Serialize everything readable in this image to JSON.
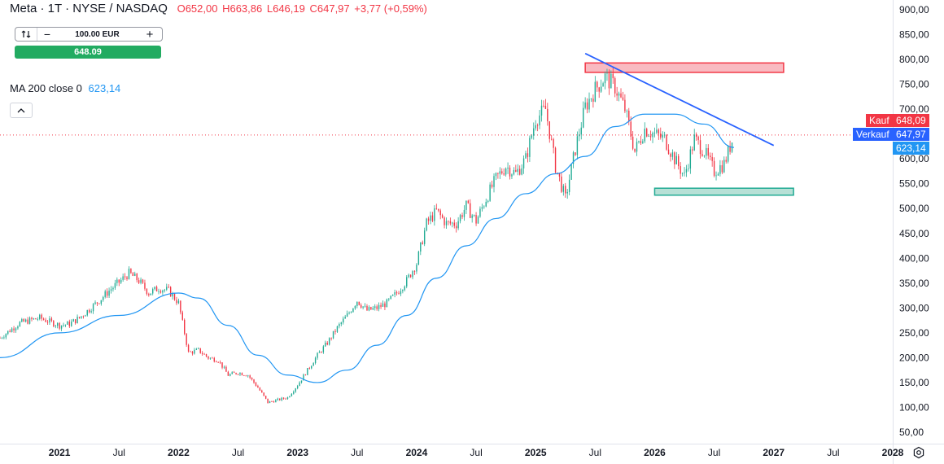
{
  "header": {
    "symbol": "Meta · 1T · NYSE / NASDAQ",
    "open": "O652,00",
    "high": "H663,86",
    "low": "L646,19",
    "close": "C647,97",
    "change": "+3,77 (+0,59%)"
  },
  "trade": {
    "quantity": "100.00 EUR",
    "minus": "−",
    "plus": "+",
    "buy_value": "648.09"
  },
  "indicator": {
    "label": "MA 200 close 0",
    "value": "623,14"
  },
  "price_tags": {
    "buy_label": "Kauf",
    "buy_value": "648,09",
    "sell_label": "Verkauf",
    "sell_value": "647,97",
    "ma_value": "623,14"
  },
  "colors": {
    "up": "#22ab94",
    "down": "#f23645",
    "ma": "#2196f3",
    "trendline": "#2962ff",
    "resistance_fill": "#f7a9b1",
    "resistance_border": "#f23645",
    "support_fill": "#a5d8cc",
    "support_border": "#22ab94",
    "buy_tag": "#f23645",
    "sell_tag": "#2962ff"
  },
  "chart_data": {
    "type": "line",
    "ylim": [
      50,
      910
    ],
    "x_start": "2020-07",
    "x_end": "2028-01",
    "y_ticks": [
      "900,00",
      "850,00",
      "800,00",
      "750,00",
      "700,00",
      "650,00",
      "600,00",
      "550,00",
      "500,00",
      "450,00",
      "400,00",
      "350,00",
      "300,00",
      "250,00",
      "200,00",
      "150,00",
      "100,00",
      "50,00"
    ],
    "x_ticks": [
      {
        "label": "2021",
        "date": "2021-01"
      },
      {
        "label": "Jul",
        "date": "2021-07"
      },
      {
        "label": "2022",
        "date": "2022-01"
      },
      {
        "label": "Jul",
        "date": "2022-07"
      },
      {
        "label": "2023",
        "date": "2023-01"
      },
      {
        "label": "Jul",
        "date": "2023-07"
      },
      {
        "label": "2024",
        "date": "2024-01"
      },
      {
        "label": "Jul",
        "date": "2024-07"
      },
      {
        "label": "2025",
        "date": "2025-01"
      },
      {
        "label": "Jul",
        "date": "2025-07"
      },
      {
        "label": "2026",
        "date": "2026-01"
      },
      {
        "label": "Jul",
        "date": "2026-07"
      },
      {
        "label": "2027",
        "date": "2027-01"
      },
      {
        "label": "Jul",
        "date": "2027-07"
      },
      {
        "label": "2028",
        "date": "2028-01"
      }
    ],
    "series": [
      {
        "points": [
          [
            "2020-07",
            240
          ],
          [
            "2020-09",
            270
          ],
          [
            "2020-11",
            280
          ],
          [
            "2021-01",
            265
          ],
          [
            "2021-02",
            268
          ],
          [
            "2021-03",
            280
          ],
          [
            "2021-05",
            315
          ],
          [
            "2021-06",
            335
          ],
          [
            "2021-07",
            352
          ],
          [
            "2021-08",
            370
          ],
          [
            "2021-09",
            355
          ],
          [
            "2021-10",
            330
          ],
          [
            "2021-11",
            340
          ],
          [
            "2021-12",
            335
          ],
          [
            "2022-01",
            310
          ],
          [
            "2022-02",
            210
          ],
          [
            "2022-03",
            215
          ],
          [
            "2022-04",
            200
          ],
          [
            "2022-05",
            195
          ],
          [
            "2022-06",
            165
          ],
          [
            "2022-07",
            170
          ],
          [
            "2022-08",
            165
          ],
          [
            "2022-09",
            140
          ],
          [
            "2022-10",
            110
          ],
          [
            "2022-11",
            115
          ],
          [
            "2022-12",
            120
          ],
          [
            "2023-01",
            145
          ],
          [
            "2023-02",
            175
          ],
          [
            "2023-03",
            205
          ],
          [
            "2023-04",
            230
          ],
          [
            "2023-05",
            260
          ],
          [
            "2023-06",
            285
          ],
          [
            "2023-07",
            315
          ],
          [
            "2023-08",
            295
          ],
          [
            "2023-09",
            300
          ],
          [
            "2023-10",
            310
          ],
          [
            "2023-11",
            330
          ],
          [
            "2023-12",
            355
          ],
          [
            "2024-01",
            390
          ],
          [
            "2024-02",
            470
          ],
          [
            "2024-03",
            495
          ],
          [
            "2024-04",
            470
          ],
          [
            "2024-05",
            470
          ],
          [
            "2024-06",
            505
          ],
          [
            "2024-07",
            475
          ],
          [
            "2024-08",
            520
          ],
          [
            "2024-09",
            560
          ],
          [
            "2024-10",
            585
          ],
          [
            "2024-11",
            570
          ],
          [
            "2024-12",
            600
          ],
          [
            "2025-01",
            680
          ],
          [
            "2025-02",
            700
          ],
          [
            "2025-03",
            585
          ],
          [
            "2025-04",
            520
          ],
          [
            "2025-05",
            620
          ],
          [
            "2025-06",
            705
          ],
          [
            "2025-07",
            740
          ],
          [
            "2025-08",
            765
          ],
          [
            "2025-09",
            745
          ],
          [
            "2025-10",
            700
          ],
          [
            "2025-11",
            615
          ],
          [
            "2025-12",
            660
          ],
          [
            "2026-01",
            650
          ],
          [
            "2026-02",
            640
          ],
          [
            "2026-03",
            600
          ],
          [
            "2026-04",
            565
          ],
          [
            "2026-05",
            640
          ],
          [
            "2026-06",
            615
          ],
          [
            "2026-07",
            575
          ],
          [
            "2026-08",
            590
          ],
          [
            "2026-09",
            648
          ]
        ]
      },
      {
        "name": "MA 200 close 0",
        "points": [
          [
            "2020-07",
            200
          ],
          [
            "2021-01",
            250
          ],
          [
            "2021-07",
            285
          ],
          [
            "2022-01",
            330
          ],
          [
            "2022-03",
            320
          ],
          [
            "2022-06",
            265
          ],
          [
            "2022-09",
            205
          ],
          [
            "2022-12",
            165
          ],
          [
            "2023-03",
            150
          ],
          [
            "2023-06",
            175
          ],
          [
            "2023-09",
            225
          ],
          [
            "2023-12",
            285
          ],
          [
            "2024-03",
            360
          ],
          [
            "2024-06",
            425
          ],
          [
            "2024-09",
            480
          ],
          [
            "2024-12",
            530
          ],
          [
            "2025-03",
            570
          ],
          [
            "2025-06",
            605
          ],
          [
            "2025-09",
            665
          ],
          [
            "2025-12",
            690
          ],
          [
            "2026-03",
            690
          ],
          [
            "2026-06",
            670
          ],
          [
            "2026-09",
            623
          ]
        ]
      }
    ],
    "annotations": {
      "resistance_zone": {
        "x0": "2025-06",
        "x1": "2027-02",
        "y0": 774,
        "y1": 793
      },
      "support_zone": {
        "x0": "2026-01",
        "x1": "2027-03",
        "y0": 527,
        "y1": 541
      },
      "trendline": {
        "x0": "2025-06",
        "y0": 812,
        "x1": "2027-01",
        "y1": 627
      },
      "current_price": 648
    }
  }
}
